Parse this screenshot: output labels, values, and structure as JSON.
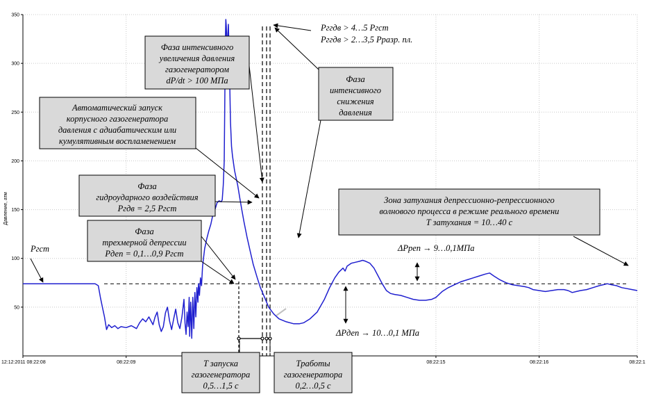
{
  "chart_data": {
    "type": "line",
    "ylabel": "Давление, атм",
    "ylim": [
      0,
      350
    ],
    "yticks": [
      50,
      100,
      150,
      200,
      250,
      300,
      350
    ],
    "xlim": [
      0,
      5.95
    ],
    "xticks": [
      {
        "t": 0,
        "label": "12:12:2011  08:22:08"
      },
      {
        "t": 1,
        "label": "08:22:09"
      },
      {
        "t": 4,
        "label": "08:22:15"
      },
      {
        "t": 5,
        "label": "08:22:16"
      },
      {
        "t": 5.95,
        "label": "08:22:1"
      }
    ],
    "reference_level": 74,
    "grid": true,
    "series": [
      {
        "color": "#1f1fcf",
        "points": [
          [
            0.0,
            74
          ],
          [
            0.7,
            74
          ],
          [
            0.73,
            72
          ],
          [
            0.75,
            60
          ],
          [
            0.77,
            50
          ],
          [
            0.79,
            40
          ],
          [
            0.81,
            27
          ],
          [
            0.83,
            32
          ],
          [
            0.86,
            29
          ],
          [
            0.89,
            31
          ],
          [
            0.92,
            28
          ],
          [
            0.95,
            30
          ],
          [
            1.0,
            29
          ],
          [
            1.05,
            31
          ],
          [
            1.1,
            28
          ],
          [
            1.13,
            34
          ],
          [
            1.16,
            38
          ],
          [
            1.19,
            35
          ],
          [
            1.22,
            40
          ],
          [
            1.24,
            36
          ],
          [
            1.26,
            32
          ],
          [
            1.28,
            40
          ],
          [
            1.3,
            45
          ],
          [
            1.32,
            32
          ],
          [
            1.34,
            25
          ],
          [
            1.36,
            30
          ],
          [
            1.38,
            44
          ],
          [
            1.4,
            50
          ],
          [
            1.42,
            36
          ],
          [
            1.44,
            27
          ],
          [
            1.46,
            38
          ],
          [
            1.48,
            48
          ],
          [
            1.5,
            34
          ],
          [
            1.52,
            28
          ],
          [
            1.54,
            40
          ],
          [
            1.56,
            58
          ],
          [
            1.57,
            34
          ],
          [
            1.58,
            22
          ],
          [
            1.59,
            45
          ],
          [
            1.6,
            30
          ],
          [
            1.61,
            60
          ],
          [
            1.615,
            20
          ],
          [
            1.625,
            55
          ],
          [
            1.635,
            18
          ],
          [
            1.645,
            60
          ],
          [
            1.655,
            28
          ],
          [
            1.665,
            65
          ],
          [
            1.675,
            40
          ],
          [
            1.685,
            70
          ],
          [
            1.695,
            55
          ],
          [
            1.7,
            74
          ],
          [
            1.71,
            62
          ],
          [
            1.72,
            80
          ],
          [
            1.73,
            72
          ],
          [
            1.74,
            92
          ],
          [
            1.76,
            110
          ],
          [
            1.78,
            120
          ],
          [
            1.8,
            128
          ],
          [
            1.82,
            135
          ],
          [
            1.84,
            145
          ],
          [
            1.86,
            150
          ],
          [
            1.88,
            157
          ],
          [
            1.9,
            159
          ],
          [
            1.92,
            158
          ],
          [
            1.93,
            160
          ],
          [
            1.94,
            175
          ],
          [
            1.95,
            200
          ],
          [
            1.955,
            260
          ],
          [
            1.96,
            320
          ],
          [
            1.965,
            345
          ],
          [
            1.97,
            338
          ],
          [
            1.975,
            320
          ],
          [
            1.98,
            300
          ],
          [
            1.985,
            330
          ],
          [
            1.99,
            340
          ],
          [
            1.995,
            320
          ],
          [
            2.0,
            300
          ],
          [
            2.005,
            270
          ],
          [
            2.01,
            240
          ],
          [
            2.02,
            215
          ],
          [
            2.03,
            205
          ],
          [
            2.05,
            190
          ],
          [
            2.08,
            175
          ],
          [
            2.1,
            162
          ],
          [
            2.12,
            150
          ],
          [
            2.14,
            138
          ],
          [
            2.17,
            122
          ],
          [
            2.2,
            108
          ],
          [
            2.23,
            94
          ],
          [
            2.27,
            80
          ],
          [
            2.3,
            70
          ],
          [
            2.34,
            60
          ],
          [
            2.38,
            50
          ],
          [
            2.43,
            43
          ],
          [
            2.48,
            38
          ],
          [
            2.55,
            35
          ],
          [
            2.62,
            33
          ],
          [
            2.68,
            33
          ],
          [
            2.72,
            34
          ],
          [
            2.78,
            38
          ],
          [
            2.85,
            45
          ],
          [
            2.92,
            58
          ],
          [
            2.97,
            70
          ],
          [
            3.02,
            80
          ],
          [
            3.06,
            86
          ],
          [
            3.1,
            90
          ],
          [
            3.12,
            87
          ],
          [
            3.14,
            92
          ],
          [
            3.18,
            95
          ],
          [
            3.22,
            96
          ],
          [
            3.26,
            97
          ],
          [
            3.29,
            98
          ],
          [
            3.32,
            97
          ],
          [
            3.36,
            95
          ],
          [
            3.4,
            90
          ],
          [
            3.44,
            82
          ],
          [
            3.48,
            74
          ],
          [
            3.52,
            67
          ],
          [
            3.56,
            64
          ],
          [
            3.6,
            63
          ],
          [
            3.66,
            62
          ],
          [
            3.72,
            60
          ],
          [
            3.78,
            58
          ],
          [
            3.84,
            57
          ],
          [
            3.9,
            57
          ],
          [
            3.96,
            58
          ],
          [
            4.0,
            60
          ],
          [
            4.06,
            66
          ],
          [
            4.12,
            70
          ],
          [
            4.18,
            73
          ],
          [
            4.24,
            76
          ],
          [
            4.3,
            78
          ],
          [
            4.36,
            80
          ],
          [
            4.42,
            82
          ],
          [
            4.48,
            84
          ],
          [
            4.52,
            85
          ],
          [
            4.56,
            82
          ],
          [
            4.62,
            78
          ],
          [
            4.68,
            75
          ],
          [
            4.74,
            73
          ],
          [
            4.8,
            72
          ],
          [
            4.86,
            71
          ],
          [
            4.9,
            70
          ],
          [
            4.94,
            68
          ],
          [
            5.0,
            67
          ],
          [
            5.06,
            66
          ],
          [
            5.12,
            67
          ],
          [
            5.18,
            68
          ],
          [
            5.24,
            68
          ],
          [
            5.28,
            67
          ],
          [
            5.32,
            65
          ],
          [
            5.36,
            66
          ],
          [
            5.4,
            67
          ],
          [
            5.46,
            68
          ],
          [
            5.52,
            70
          ],
          [
            5.58,
            72
          ],
          [
            5.62,
            73
          ],
          [
            5.66,
            74
          ],
          [
            5.7,
            73
          ],
          [
            5.75,
            72
          ],
          [
            5.8,
            70
          ],
          [
            5.85,
            69
          ],
          [
            5.9,
            68
          ],
          [
            5.95,
            67
          ]
        ]
      }
    ],
    "annotations": [
      {
        "name": "annotation-intensive-increase",
        "lines": [
          "Фаза интенсивного",
          "увеличения давления",
          "газогенератором",
          "dP/dt > 100 МПа"
        ]
      },
      {
        "name": "annotation-peak-pressure",
        "lines": [
          "Pггдв >  4…5  Pгст",
          "Pггдв >  2…3,5 Pразр. пл."
        ]
      },
      {
        "name": "annotation-intensive-decrease",
        "lines": [
          "Фаза",
          "интенсивного",
          "снижения",
          "давления"
        ]
      },
      {
        "name": "annotation-auto-start",
        "lines": [
          "Автоматический запуск",
          "корпусного газогенератора",
          "давления с адиабатическим  или",
          "кумулятивным  воспламенением"
        ]
      },
      {
        "name": "annotation-hydro-impact",
        "lines": [
          "Фаза",
          "гидроударного воздействия",
          "Pгдв = 2,5 Pгст"
        ]
      },
      {
        "name": "annotation-damping-zone",
        "lines": [
          "Зона затухания депрессионно-репрессионного",
          "волнового процесса в режиме реального времени",
          "T затухания = 10…40 с"
        ]
      },
      {
        "name": "annotation-depression",
        "lines": [
          "Фаза",
          "трехмерной депрессии",
          "Pдеп = 0,1…0,9 Pгст"
        ]
      },
      {
        "name": "annotation-p-static",
        "lines": [
          "Pгст"
        ]
      },
      {
        "name": "annotation-dp-rep",
        "lines": [
          "ΔPреп → 9…0,1МПа"
        ]
      },
      {
        "name": "annotation-dp-dep",
        "lines": [
          "ΔPдеп → 10…0,1  МПа"
        ]
      },
      {
        "name": "annotation-t-start",
        "lines": [
          "T запуска",
          "газогенератора",
          "0,5…1,5 с"
        ]
      },
      {
        "name": "annotation-t-work",
        "lines": [
          "Tработы",
          "газогенератора",
          "0,2…0,5 с"
        ]
      }
    ]
  }
}
